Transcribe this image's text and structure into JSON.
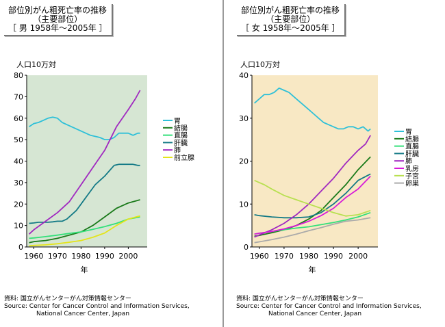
{
  "panels": [
    {
      "title_line1": "部位別がん粗死亡率の推移",
      "title_line2": "（主要部位）",
      "title_line3": "［ 男 1958年～2005年 ］",
      "unit_label": "人口10万対",
      "source_line1": "資料: 国立がんセンターがん対策情報センター",
      "source_line2": "Source: Center for Cancer Control and Information Services,",
      "source_line3": "National Cancer Center, Japan"
    },
    {
      "title_line1": "部位別がん粗死亡率の推移",
      "title_line2": "（主要部位）",
      "title_line3": "［ 女 1958年～2005年 ］",
      "unit_label": "人口10万対",
      "source_line1": "資料: 国立がんセンターがん対策情報センター",
      "source_line2": "Source: Center for Cancer Control and Information Services,",
      "source_line3": "National Cancer Center, Japan"
    }
  ],
  "chart_data": [
    {
      "type": "line",
      "title": "部位別がん粗死亡率の推移 （主要部位） ［ 男 1958年～2005年 ］",
      "xlabel": "年",
      "ylabel": "人口10万対",
      "xlim": [
        1957,
        2008
      ],
      "ylim": [
        0,
        80
      ],
      "xticks": [
        1960,
        1970,
        1980,
        1990,
        2000
      ],
      "yticks": [
        0,
        10,
        20,
        30,
        40,
        50,
        60,
        70,
        80
      ],
      "background": "#d6e6d3",
      "grid": false,
      "legend_position": "right",
      "series": [
        {
          "name": "胃",
          "color": "#2ec0d8",
          "x": [
            1958,
            1960,
            1962,
            1964,
            1966,
            1968,
            1970,
            1972,
            1974,
            1976,
            1978,
            1980,
            1982,
            1984,
            1986,
            1988,
            1990,
            1992,
            1994,
            1996,
            1998,
            2000,
            2002,
            2004,
            2005
          ],
          "y": [
            56,
            57.5,
            58,
            59,
            60,
            60.5,
            60,
            58,
            57,
            56,
            55,
            54,
            53,
            52,
            51.5,
            51,
            50,
            50,
            51,
            53,
            53,
            53,
            52,
            53,
            53
          ]
        },
        {
          "name": "結腸",
          "color": "#1a7a1a",
          "x": [
            1958,
            1960,
            1965,
            1970,
            1975,
            1980,
            1985,
            1990,
            1995,
            2000,
            2005
          ],
          "y": [
            2,
            2.5,
            3,
            4,
            5.5,
            7,
            10,
            14,
            18,
            20.5,
            22
          ]
        },
        {
          "name": "直腸",
          "color": "#33e07a",
          "x": [
            1958,
            1960,
            1965,
            1970,
            1975,
            1980,
            1985,
            1990,
            1995,
            2000,
            2005
          ],
          "y": [
            4,
            4.2,
            4.8,
            5.5,
            6.3,
            7,
            8.2,
            9.5,
            11,
            13,
            14
          ]
        },
        {
          "name": "肝臓",
          "color": "#147a86",
          "x": [
            1958,
            1960,
            1962,
            1964,
            1966,
            1968,
            1970,
            1972,
            1974,
            1976,
            1978,
            1980,
            1982,
            1984,
            1986,
            1988,
            1990,
            1992,
            1994,
            1996,
            1998,
            2000,
            2002,
            2004,
            2005
          ],
          "y": [
            11,
            11.2,
            11.5,
            11.5,
            11.5,
            11.7,
            12,
            12,
            13,
            15,
            17,
            20,
            23,
            26,
            29,
            31,
            33,
            35.5,
            38,
            38.5,
            38.5,
            38.5,
            38.5,
            38,
            38
          ]
        },
        {
          "name": "肺",
          "color": "#a028c0",
          "x": [
            1958,
            1960,
            1965,
            1970,
            1975,
            1980,
            1985,
            1990,
            1995,
            2000,
            2003,
            2005
          ],
          "y": [
            6,
            8,
            12,
            16,
            21,
            29,
            37,
            45,
            56,
            64,
            69,
            73
          ]
        },
        {
          "name": "前立腺",
          "color": "#e4e41a",
          "x": [
            1958,
            1960,
            1965,
            1970,
            1975,
            1980,
            1985,
            1990,
            1995,
            2000,
            2005
          ],
          "y": [
            0.5,
            0.7,
            1,
            1.5,
            2.2,
            3,
            4.5,
            6.5,
            10,
            13,
            14.5
          ]
        }
      ]
    },
    {
      "type": "line",
      "title": "部位別がん粗死亡率の推移 （主要部位） ［ 女 1958年～2005年 ］",
      "xlabel": "年",
      "ylabel": "人口10万対",
      "xlim": [
        1957,
        2008
      ],
      "ylim": [
        0,
        40
      ],
      "xticks": [
        1960,
        1970,
        1980,
        1990,
        2000
      ],
      "yticks": [
        0,
        10,
        20,
        30,
        40
      ],
      "background": "#f8e8c4",
      "grid": false,
      "legend_position": "right",
      "series": [
        {
          "name": "胃",
          "color": "#2ec0d8",
          "x": [
            1958,
            1960,
            1962,
            1964,
            1966,
            1968,
            1970,
            1972,
            1974,
            1976,
            1978,
            1980,
            1982,
            1984,
            1986,
            1988,
            1990,
            1992,
            1994,
            1996,
            1998,
            2000,
            2002,
            2004,
            2005
          ],
          "y": [
            33.5,
            34.5,
            35.5,
            35.5,
            36,
            37,
            36.5,
            36,
            35,
            34,
            33,
            32,
            31,
            30,
            29,
            28.5,
            28,
            27.5,
            27.5,
            28,
            28,
            27.5,
            28,
            27,
            27.5
          ]
        },
        {
          "name": "結腸",
          "color": "#1a7a1a",
          "x": [
            1958,
            1960,
            1965,
            1970,
            1975,
            1980,
            1985,
            1990,
            1995,
            2000,
            2005
          ],
          "y": [
            2.5,
            2.7,
            3.3,
            4,
            5,
            6.5,
            8.5,
            11.5,
            14.5,
            18,
            21
          ]
        },
        {
          "name": "直腸",
          "color": "#33e07a",
          "x": [
            1958,
            1960,
            1965,
            1970,
            1975,
            1980,
            1985,
            1990,
            1995,
            2000,
            2005
          ],
          "y": [
            3,
            3.2,
            3.6,
            4,
            4.4,
            4.7,
            5.2,
            5.7,
            6.3,
            7,
            8
          ]
        },
        {
          "name": "肝臓",
          "color": "#147a86",
          "x": [
            1958,
            1960,
            1965,
            1970,
            1975,
            1980,
            1985,
            1990,
            1995,
            2000,
            2005
          ],
          "y": [
            7.5,
            7.3,
            7,
            6.8,
            6.8,
            7,
            8,
            10,
            12.5,
            15.5,
            17
          ]
        },
        {
          "name": "肺",
          "color": "#a028c0",
          "x": [
            1958,
            1960,
            1965,
            1970,
            1975,
            1980,
            1985,
            1990,
            1995,
            2000,
            2003,
            2005
          ],
          "y": [
            2.3,
            2.8,
            4,
            5.5,
            7.5,
            10,
            13,
            16,
            19.5,
            22.5,
            24,
            26
          ]
        },
        {
          "name": "乳房",
          "color": "#d81ad8",
          "x": [
            1958,
            1960,
            1965,
            1970,
            1975,
            1980,
            1985,
            1990,
            1995,
            2000,
            2005
          ],
          "y": [
            3,
            3.2,
            3.6,
            4.2,
            5,
            6,
            7.3,
            9,
            11.5,
            13.5,
            16.5
          ]
        },
        {
          "name": "子宮",
          "color": "#b8e050",
          "x": [
            1958,
            1960,
            1962,
            1965,
            1970,
            1975,
            1980,
            1985,
            1990,
            1995,
            2000,
            2005
          ],
          "y": [
            15.5,
            15,
            14.5,
            13.5,
            12,
            11,
            10,
            9,
            8,
            7.2,
            7.5,
            8.5
          ]
        },
        {
          "name": "卵巣",
          "color": "#aaaaaa",
          "x": [
            1958,
            1960,
            1965,
            1970,
            1975,
            1980,
            1985,
            1990,
            1995,
            2000,
            2005
          ],
          "y": [
            1,
            1.2,
            1.7,
            2.3,
            3,
            3.8,
            4.5,
            5.3,
            6,
            6.3,
            6.8
          ]
        }
      ]
    }
  ]
}
